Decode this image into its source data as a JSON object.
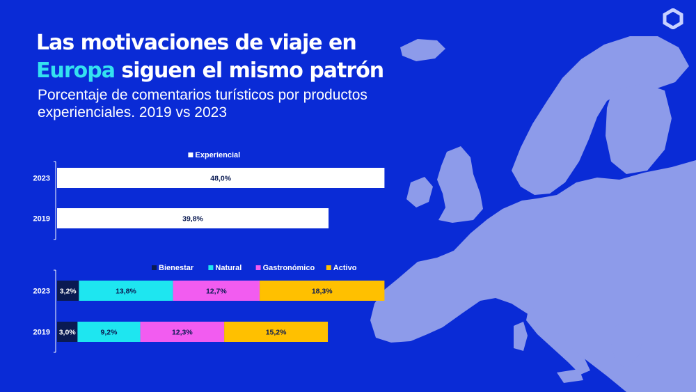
{
  "title": {
    "line1": "Las motivaciones de viaje en",
    "accent": "Europa",
    "line2_rest": " siguen el mismo patrón"
  },
  "subtitle": "Porcentaje de comentarios turísticos por productos experienciales. 2019 vs 2023",
  "colors": {
    "background": "#0a2bd6",
    "map": "#8d9bea",
    "accent": "#34e1f0"
  },
  "logo_icon": "hexagon-logo-icon",
  "chart_data": [
    {
      "type": "bar",
      "orientation": "horizontal",
      "categories": [
        "2023",
        "2019"
      ],
      "series": [
        {
          "name": "Experiencial",
          "color": "#ffffff",
          "values": [
            48.0,
            39.8
          ],
          "labels": [
            "48,0%",
            "39,8%"
          ]
        }
      ],
      "legend": "top"
    },
    {
      "type": "bar",
      "orientation": "horizontal",
      "stacked": true,
      "categories": [
        "2023",
        "2019"
      ],
      "series": [
        {
          "name": "Bienestar",
          "color": "#0a1a52",
          "values": [
            3.2,
            3.0
          ],
          "labels": [
            "3,2%",
            "3,0%"
          ]
        },
        {
          "name": "Natural",
          "color": "#1ee6f0",
          "values": [
            13.8,
            9.2
          ],
          "labels": [
            "13,8%",
            "9,2%"
          ]
        },
        {
          "name": "Gastronómico",
          "color": "#f25cf0",
          "values": [
            12.7,
            12.3
          ],
          "labels": [
            "12,7%",
            "12,3%"
          ]
        },
        {
          "name": "Activo",
          "color": "#ffc000",
          "values": [
            18.3,
            15.2
          ],
          "labels": [
            "18,3%",
            "15,2%"
          ]
        }
      ],
      "legend": "top"
    }
  ]
}
